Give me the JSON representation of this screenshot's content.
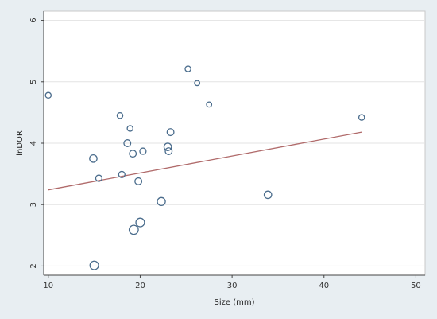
{
  "chart_data": {
    "type": "scatter",
    "title": "",
    "xlabel": "Size (mm)",
    "ylabel": "lnDOR",
    "xlim": [
      9.5,
      51
    ],
    "ylim": [
      1.85,
      6.15
    ],
    "xticks": [
      10,
      20,
      30,
      40,
      50
    ],
    "yticks": [
      2,
      3,
      4,
      5,
      6
    ],
    "ytick_rotation": "vertical",
    "grid": "horizontal",
    "colors": {
      "background": "#e8eef2",
      "plot_background": "#ffffff",
      "grid": "#e3e3e3",
      "marker": "#4a6c8c",
      "fit_line": "#b06a6a"
    },
    "series": [
      {
        "kind": "points",
        "marker": "hollow-circle",
        "sized_by_weight": true,
        "points": [
          {
            "x": 10.0,
            "y": 4.78,
            "w": 1.0
          },
          {
            "x": 14.9,
            "y": 3.75,
            "w": 1.3
          },
          {
            "x": 15.5,
            "y": 3.43,
            "w": 1.1
          },
          {
            "x": 15.0,
            "y": 2.01,
            "w": 1.5
          },
          {
            "x": 17.8,
            "y": 4.45,
            "w": 1.0
          },
          {
            "x": 18.0,
            "y": 3.49,
            "w": 1.1
          },
          {
            "x": 18.6,
            "y": 4.0,
            "w": 1.2
          },
          {
            "x": 18.9,
            "y": 4.24,
            "w": 1.0
          },
          {
            "x": 19.2,
            "y": 3.83,
            "w": 1.2
          },
          {
            "x": 19.3,
            "y": 2.59,
            "w": 1.6
          },
          {
            "x": 19.8,
            "y": 3.38,
            "w": 1.2
          },
          {
            "x": 20.0,
            "y": 2.71,
            "w": 1.5
          },
          {
            "x": 20.3,
            "y": 3.87,
            "w": 1.1
          },
          {
            "x": 22.3,
            "y": 3.05,
            "w": 1.4
          },
          {
            "x": 23.0,
            "y": 3.94,
            "w": 1.3
          },
          {
            "x": 23.1,
            "y": 3.87,
            "w": 1.2
          },
          {
            "x": 23.3,
            "y": 4.18,
            "w": 1.2
          },
          {
            "x": 25.2,
            "y": 5.21,
            "w": 1.0
          },
          {
            "x": 26.2,
            "y": 4.98,
            "w": 0.9
          },
          {
            "x": 27.5,
            "y": 4.63,
            "w": 0.9
          },
          {
            "x": 33.9,
            "y": 3.16,
            "w": 1.3
          },
          {
            "x": 44.1,
            "y": 4.42,
            "w": 1.0
          }
        ]
      },
      {
        "kind": "fit-line",
        "x": [
          10,
          44.1
        ],
        "y": [
          3.24,
          4.18
        ]
      }
    ]
  }
}
